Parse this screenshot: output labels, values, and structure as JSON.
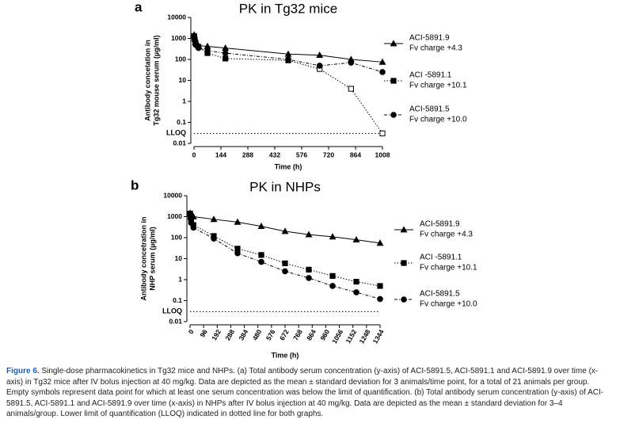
{
  "chart_data": [
    {
      "type": "line",
      "panel": "a",
      "title": "PK in Tg32 mice",
      "xlabel": "Time (h)",
      "ylabel": [
        "Antibody concetation in",
        "Tg32 mouse serum (µg/ml)"
      ],
      "xlim": [
        0,
        1008
      ],
      "xticks": [
        0,
        144,
        288,
        432,
        576,
        720,
        864,
        1008
      ],
      "ylim": [
        0.01,
        10000
      ],
      "yticks": [
        0.01,
        0.1,
        1,
        10,
        100,
        1000,
        10000
      ],
      "log_y": true,
      "lloq": {
        "label": "LLOQ",
        "value": 0.03
      },
      "legend": "right",
      "series": [
        {
          "name": "ACI-5891.9",
          "charge": "Fv charge +4.3",
          "color": "#000000",
          "marker": "triangle",
          "dash": "solid",
          "x": [
            1,
            4,
            8,
            24,
            72,
            168,
            504,
            672,
            840,
            1008
          ],
          "values": [
            1500,
            1100,
            700,
            450,
            420,
            350,
            180,
            160,
            100,
            75
          ]
        },
        {
          "name": "ACI -5891.1",
          "charge": "Fv charge +10.1",
          "color": "#000000",
          "marker": "square",
          "dash": "dotted",
          "x": [
            1,
            4,
            8,
            24,
            72,
            168,
            504,
            672,
            840,
            1008
          ],
          "values": [
            1300,
            900,
            600,
            400,
            200,
            110,
            90,
            35,
            4,
            0.03
          ],
          "hollow": [
            false,
            false,
            false,
            false,
            false,
            false,
            false,
            true,
            true,
            true
          ]
        },
        {
          "name": "ACI-5891.5",
          "charge": "Fv charge +10.0",
          "color": "#000000",
          "marker": "circle",
          "dash": "dashdot",
          "x": [
            1,
            4,
            8,
            24,
            72,
            168,
            504,
            672,
            840,
            1008
          ],
          "values": [
            1200,
            800,
            500,
            350,
            260,
            200,
            100,
            50,
            70,
            25
          ]
        }
      ]
    },
    {
      "type": "line",
      "panel": "b",
      "title": "PK in NHPs",
      "xlabel": "Time (h)",
      "ylabel": [
        "Antibody concetration in",
        "NHP serum (µg/ml)"
      ],
      "xlim": [
        0,
        1344
      ],
      "xticks": [
        0,
        96,
        192,
        288,
        384,
        480,
        576,
        672,
        768,
        864,
        960,
        1056,
        1152,
        1248,
        1344
      ],
      "ylim": [
        0.01,
        10000
      ],
      "yticks": [
        0.01,
        0.1,
        1,
        10,
        100,
        1000,
        10000
      ],
      "log_y": true,
      "lloq": {
        "label": "LLOQ",
        "value": 0.03
      },
      "legend": "right",
      "series": [
        {
          "name": "ACI-5891.9",
          "charge": "Fv charge +4.3",
          "color": "#000000",
          "marker": "triangle",
          "dash": "solid",
          "x": [
            1,
            4,
            8,
            24,
            168,
            336,
            504,
            672,
            840,
            1008,
            1176,
            1344
          ],
          "values": [
            1500,
            1300,
            1200,
            1000,
            750,
            550,
            350,
            200,
            140,
            110,
            80,
            55
          ]
        },
        {
          "name": "ACI -5891.1",
          "charge": "Fv charge +10.1",
          "color": "#000000",
          "marker": "square",
          "dash": "dotted",
          "x": [
            1,
            4,
            8,
            24,
            168,
            336,
            504,
            672,
            840,
            1008,
            1176,
            1344
          ],
          "values": [
            1400,
            900,
            600,
            400,
            120,
            30,
            15,
            6,
            3,
            1.5,
            0.8,
            0.5
          ]
        },
        {
          "name": "ACI-5891.5",
          "charge": "Fv charge +10.0",
          "color": "#000000",
          "marker": "circle",
          "dash": "dashdot",
          "x": [
            1,
            4,
            8,
            24,
            168,
            336,
            504,
            672,
            840,
            1008,
            1176,
            1344
          ],
          "values": [
            1300,
            800,
            500,
            300,
            90,
            18,
            7,
            2.5,
            1.2,
            0.5,
            0.25,
            0.12
          ]
        }
      ]
    }
  ],
  "caption": {
    "label": "Figure 6.",
    "text": "Single-dose pharmacokinetics in Tg32 mice and NHPs. (a) Total antibody serum concentration (y-axis) of ACI-5891.5, ACI-5891.1 and ACI-5891.9 over time (x-axis) in Tg32 mice after IV bolus injection at 40 mg/kg. Data are depicted as the mean ± standard deviation for 3 animals/time point, for a total of 21 animals per group. Empty symbols represent data point for which at least one serum concentration was below the limit of quantification. (b) Total antibody serum concentration (y-axis) of ACI-5891.5, ACI-5891.1 and ACI-5891.9 over time (x-axis) in NHPs after IV bolus injection at 40 mg/kg. Data are depicted as the mean ± standard deviation for 3–4 animals/group. Lower limit of quantification (LLOQ) indicated in dotted line for both graphs."
  }
}
